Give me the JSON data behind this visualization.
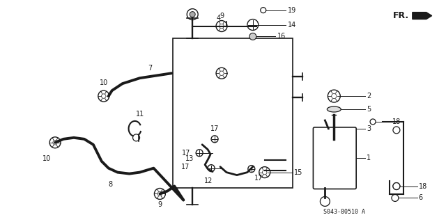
{
  "bg_color": "#ffffff",
  "line_color": "#1a1a1a",
  "fig_width": 6.4,
  "fig_height": 3.19,
  "part_code": "S043-80510 A"
}
